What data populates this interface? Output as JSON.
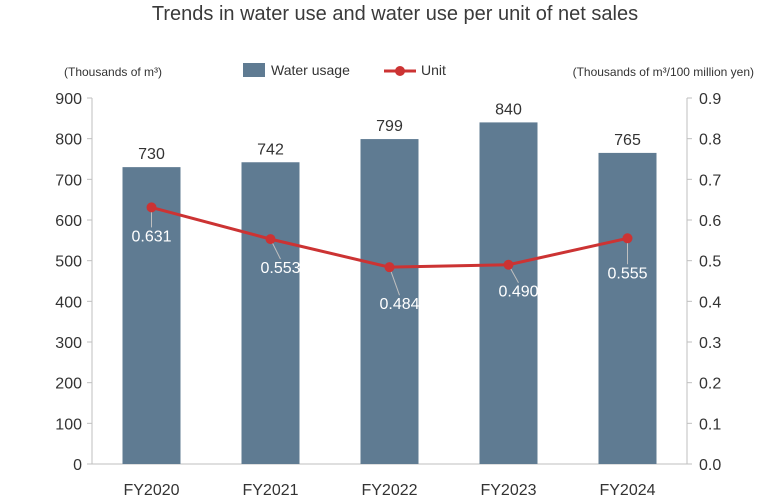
{
  "chart_data": {
    "type": "bar",
    "title": "Trends in water use and water use per unit of net sales",
    "categories": [
      "FY2020",
      "FY2021",
      "FY2022",
      "FY2023",
      "FY2024"
    ],
    "series": [
      {
        "name": "Water usage",
        "type": "bar",
        "axis": "left",
        "values": [
          730,
          742,
          799,
          840,
          765
        ],
        "labels": [
          "730",
          "742",
          "799",
          "840",
          "765"
        ],
        "color": "#5f7b92"
      },
      {
        "name": "Unit",
        "type": "line",
        "axis": "right",
        "values": [
          0.631,
          0.553,
          0.484,
          0.49,
          0.555
        ],
        "labels": [
          "0.631",
          "0.553",
          "0.484",
          "0.490",
          "0.555"
        ],
        "color": "#cc3333"
      }
    ],
    "ylabel_left": "(Thousands of m³)",
    "ylabel_right": "(Thousands of m³/100 million yen)",
    "ylim_left": [
      0,
      900
    ],
    "ylim_right": [
      0,
      0.9
    ],
    "yticks_left": [
      "0",
      "100",
      "200",
      "300",
      "400",
      "500",
      "600",
      "700",
      "800",
      "900"
    ],
    "yticks_right": [
      "0.0",
      "0.1",
      "0.2",
      "0.3",
      "0.4",
      "0.5",
      "0.6",
      "0.7",
      "0.8",
      "0.9"
    ],
    "legend_position": "top-center",
    "grid": false
  }
}
